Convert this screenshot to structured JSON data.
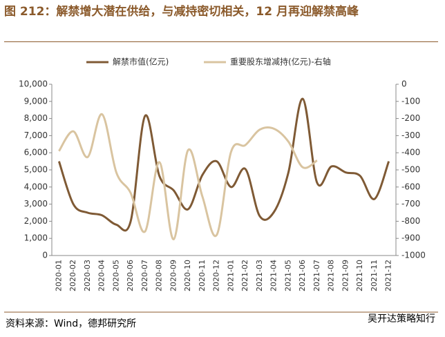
{
  "chart_data": {
    "type": "line",
    "title": "图 212：解禁增大潜在供给，与减持密切相关，12 月再迎解禁高峰",
    "source": "资料来源：Wind，德邦研究所",
    "watermark": "吴开达策略知行",
    "categories": [
      "2020-01",
      "2020-02",
      "2020-03",
      "2020-04",
      "2020-05",
      "2020-06",
      "2020-07",
      "2020-08",
      "2020-09",
      "2020-10",
      "2020-11",
      "2020-12",
      "2021-01",
      "2021-02",
      "2021-03",
      "2021-04",
      "2021-05",
      "2021-06",
      "2021-07",
      "2021-08",
      "2021-09",
      "2021-10",
      "2021-11",
      "2021-12"
    ],
    "series": [
      {
        "name": "解禁市值(亿元)",
        "color": "#7f5a35",
        "values": [
          5500,
          3000,
          2500,
          2350,
          1800,
          2000,
          8150,
          4650,
          3800,
          2700,
          4700,
          5500,
          4000,
          5050,
          2300,
          2550,
          4850,
          9150,
          4250,
          5200,
          4850,
          4650,
          3300,
          5500
        ]
      },
      {
        "name": "重要股东增减持(亿元)-右轴",
        "color": "#d9c4a0",
        "axis": "y2",
        "values": [
          -390,
          -275,
          -425,
          -175,
          -515,
          -635,
          -860,
          -455,
          -905,
          -385,
          -655,
          -880,
          -395,
          -355,
          -265,
          -260,
          -335,
          -485,
          -445,
          null,
          null,
          null,
          null,
          null
        ]
      }
    ],
    "ylim": [
      0,
      10000
    ],
    "yticks": [
      0,
      {
        "value": 1000,
        "label": "1,000"
      },
      {
        "value": 2000,
        "label": "2,000"
      },
      {
        "value": 3000,
        "label": "3,000"
      },
      {
        "value": 4000,
        "label": "4,000"
      },
      {
        "value": 5000,
        "label": "5,000"
      },
      {
        "value": 6000,
        "label": "6,000"
      },
      {
        "value": 7000,
        "label": "7,000"
      },
      {
        "value": 8000,
        "label": "8,000"
      },
      {
        "value": 9000,
        "label": "9,000"
      },
      {
        "value": 10000,
        "label": "10,000"
      }
    ],
    "y2lim": [
      -1000,
      0
    ],
    "y2ticks": [
      -1000,
      -900,
      -800,
      -700,
      -600,
      -500,
      -400,
      -300,
      -200,
      -100,
      0
    ],
    "legend": "top"
  }
}
